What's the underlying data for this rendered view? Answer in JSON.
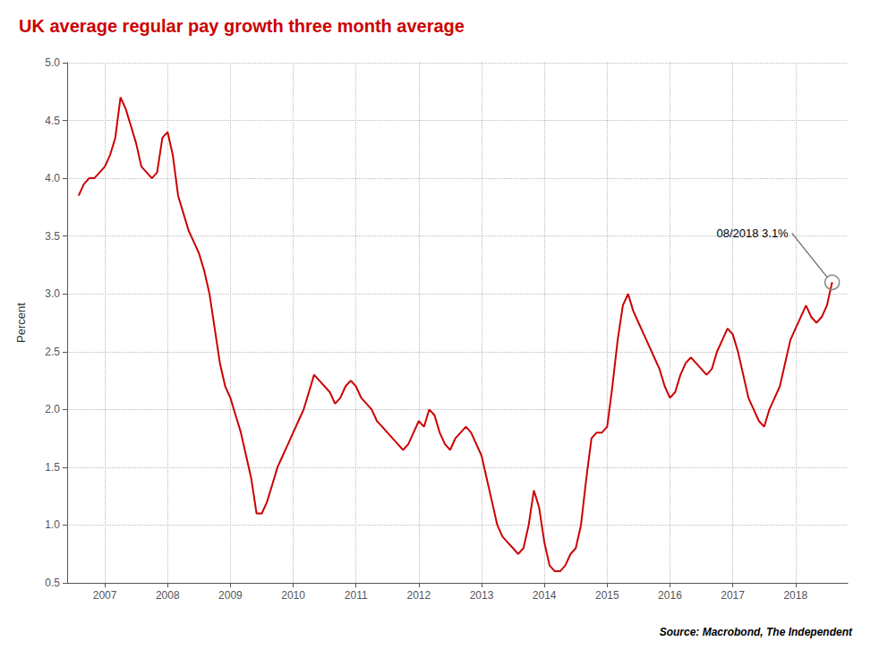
{
  "chart_data": {
    "type": "line",
    "title": "UK average regular pay growth three month average",
    "title_color": "#cc0000",
    "ylabel": "Percent",
    "source": "Source: Macrobond, The Independent",
    "color": "#cc0000",
    "grid": true,
    "xlim": [
      2006.4,
      2018.83
    ],
    "xticks": [
      2007,
      2008,
      2009,
      2010,
      2011,
      2012,
      2013,
      2014,
      2015,
      2016,
      2017,
      2018
    ],
    "ylim": [
      0.5,
      5.0
    ],
    "yticks": [
      0.5,
      {
        "value": 1.0,
        "label": "1.0"
      },
      1.5,
      {
        "value": 2.0,
        "label": "2.0"
      },
      2.5,
      {
        "value": 3.0,
        "label": "3.0"
      },
      3.5,
      {
        "value": 4.0,
        "label": "4.0"
      },
      4.5,
      {
        "value": 5.0,
        "label": "5.0"
      }
    ],
    "annotations": [
      {
        "text": "08/2018 3.1%",
        "x": 2018.583,
        "y": 3.1
      }
    ],
    "x": [
      2006.583,
      2006.667,
      2006.75,
      2006.833,
      2006.917,
      2007.0,
      2007.083,
      2007.167,
      2007.25,
      2007.333,
      2007.417,
      2007.5,
      2007.583,
      2007.667,
      2007.75,
      2007.833,
      2007.917,
      2008.0,
      2008.083,
      2008.167,
      2008.25,
      2008.333,
      2008.417,
      2008.5,
      2008.583,
      2008.667,
      2008.75,
      2008.833,
      2008.917,
      2009.0,
      2009.083,
      2009.167,
      2009.25,
      2009.333,
      2009.417,
      2009.5,
      2009.583,
      2009.667,
      2009.75,
      2009.833,
      2009.917,
      2010.0,
      2010.083,
      2010.167,
      2010.25,
      2010.333,
      2010.417,
      2010.5,
      2010.583,
      2010.667,
      2010.75,
      2010.833,
      2010.917,
      2011.0,
      2011.083,
      2011.167,
      2011.25,
      2011.333,
      2011.417,
      2011.5,
      2011.583,
      2011.667,
      2011.75,
      2011.833,
      2011.917,
      2012.0,
      2012.083,
      2012.167,
      2012.25,
      2012.333,
      2012.417,
      2012.5,
      2012.583,
      2012.667,
      2012.75,
      2012.833,
      2012.917,
      2013.0,
      2013.083,
      2013.167,
      2013.25,
      2013.333,
      2013.417,
      2013.5,
      2013.583,
      2013.667,
      2013.75,
      2013.833,
      2013.917,
      2014.0,
      2014.083,
      2014.167,
      2014.25,
      2014.333,
      2014.417,
      2014.5,
      2014.583,
      2014.667,
      2014.75,
      2014.833,
      2014.917,
      2015.0,
      2015.083,
      2015.167,
      2015.25,
      2015.333,
      2015.417,
      2015.5,
      2015.583,
      2015.667,
      2015.75,
      2015.833,
      2015.917,
      2016.0,
      2016.083,
      2016.167,
      2016.25,
      2016.333,
      2016.417,
      2016.5,
      2016.583,
      2016.667,
      2016.75,
      2016.833,
      2016.917,
      2017.0,
      2017.083,
      2017.167,
      2017.25,
      2017.333,
      2017.417,
      2017.5,
      2017.583,
      2017.667,
      2017.75,
      2017.833,
      2017.917,
      2018.0,
      2018.083,
      2018.167,
      2018.25,
      2018.333,
      2018.417,
      2018.5,
      2018.583
    ],
    "values": [
      3.85,
      3.95,
      4.0,
      4.0,
      4.05,
      4.1,
      4.2,
      4.35,
      4.7,
      4.6,
      4.45,
      4.3,
      4.1,
      4.05,
      4.0,
      4.05,
      4.35,
      4.4,
      4.2,
      3.85,
      3.7,
      3.55,
      3.45,
      3.35,
      3.2,
      3.0,
      2.7,
      2.4,
      2.2,
      2.1,
      1.95,
      1.8,
      1.6,
      1.4,
      1.1,
      1.1,
      1.2,
      1.35,
      1.5,
      1.6,
      1.7,
      1.8,
      1.9,
      2.0,
      2.15,
      2.3,
      2.25,
      2.2,
      2.15,
      2.05,
      2.1,
      2.2,
      2.25,
      2.2,
      2.1,
      2.05,
      2.0,
      1.9,
      1.85,
      1.8,
      1.75,
      1.7,
      1.65,
      1.7,
      1.8,
      1.9,
      1.85,
      2.0,
      1.95,
      1.8,
      1.7,
      1.65,
      1.75,
      1.8,
      1.85,
      1.8,
      1.7,
      1.6,
      1.4,
      1.2,
      1.0,
      0.9,
      0.85,
      0.8,
      0.75,
      0.8,
      1.0,
      1.3,
      1.15,
      0.85,
      0.65,
      0.6,
      0.6,
      0.65,
      0.75,
      0.8,
      1.0,
      1.4,
      1.75,
      1.8,
      1.8,
      1.85,
      2.2,
      2.6,
      2.9,
      3.0,
      2.85,
      2.75,
      2.65,
      2.55,
      2.45,
      2.35,
      2.2,
      2.1,
      2.15,
      2.3,
      2.4,
      2.45,
      2.4,
      2.35,
      2.3,
      2.35,
      2.5,
      2.6,
      2.7,
      2.65,
      2.5,
      2.3,
      2.1,
      2.0,
      1.9,
      1.85,
      2.0,
      2.1,
      2.2,
      2.4,
      2.6,
      2.7,
      2.8,
      2.9,
      2.8,
      2.75,
      2.8,
      2.9,
      3.1
    ]
  }
}
